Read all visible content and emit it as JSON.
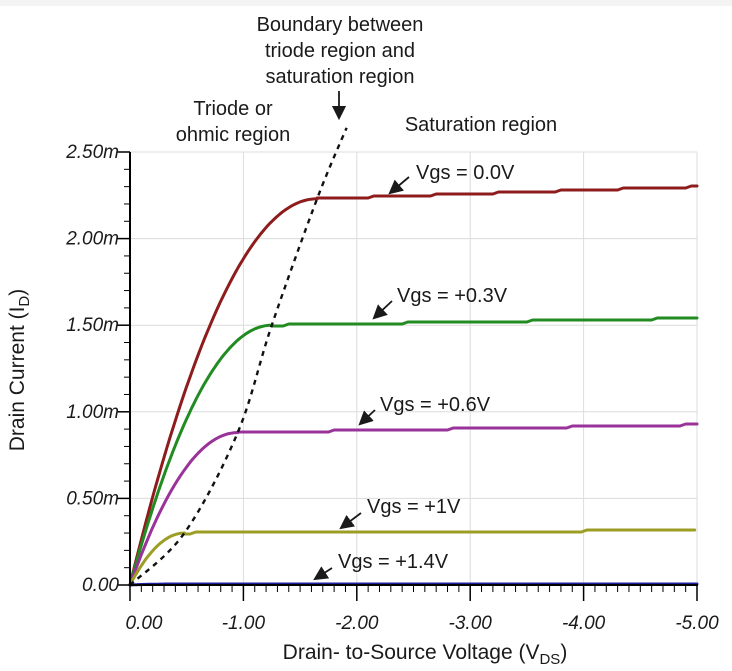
{
  "figure": {
    "background": "#ffffff",
    "top_strip_color": "#f4f4f5",
    "grid_color": "#dcdcdc",
    "axis_color": "#000000",
    "text_color": "#1a1a1a"
  },
  "annotations": {
    "boundary_line1": "Boundary between",
    "boundary_line2": "triode region and",
    "boundary_line3": "saturation region",
    "triode_line1": "Triode or",
    "triode_line2": "ohmic region",
    "saturation": "Saturation region"
  },
  "chart_data": {
    "type": "line",
    "title": "",
    "xlabel_pre": "Drain- to-Source Voltage (V",
    "xlabel_sub": "DS",
    "xlabel_post": ")",
    "ylabel_pre": "Drain Current (I",
    "ylabel_sub": "D",
    "ylabel_post": ")",
    "grid": true,
    "legend_position": "inline-labels",
    "x_axis": {
      "unit": "V",
      "min": 0,
      "max": -5,
      "tick_values": [
        0,
        -1,
        -2,
        -3,
        -4,
        -5
      ],
      "tick_labels": [
        "0.00",
        "-1.00",
        "-2.00",
        "-3.00",
        "-4.00",
        "-5.00"
      ],
      "minor_step": 0.1
    },
    "y_axis": {
      "unit": "mA",
      "min": 0,
      "max": 2.5,
      "tick_values": [
        0,
        0.5,
        1.0,
        1.5,
        2.0,
        2.5
      ],
      "tick_labels": [
        "0.00",
        "0.50m",
        "1.00m",
        "1.50m",
        "2.00m",
        "2.50m"
      ],
      "minor_step": 0.1
    },
    "series": [
      {
        "name": "Vgs = 0.0V",
        "vgs_v": 0.0,
        "color": "#8e1c1c",
        "pinch_off_vds_v": -1.65,
        "saturation_current_mA": 2.23,
        "current_at_vds_minus5_mA": 2.3,
        "points_vds_v_vs_id_mA": [
          [
            0,
            0
          ],
          [
            -0.25,
            0.62
          ],
          [
            -0.5,
            1.15
          ],
          [
            -0.75,
            1.57
          ],
          [
            -1.0,
            1.88
          ],
          [
            -1.25,
            2.1
          ],
          [
            -1.5,
            2.21
          ],
          [
            -1.65,
            2.23
          ],
          [
            -2.0,
            2.24
          ],
          [
            -3.0,
            2.26
          ],
          [
            -4.0,
            2.28
          ],
          [
            -5.0,
            2.3
          ]
        ]
      },
      {
        "name": "Vgs = +0.3V",
        "vgs_v": 0.3,
        "color": "#228b22",
        "pinch_off_vds_v": -1.25,
        "saturation_current_mA": 1.5,
        "current_at_vds_minus5_mA": 1.54,
        "points_vds_v_vs_id_mA": [
          [
            0,
            0
          ],
          [
            -0.25,
            0.54
          ],
          [
            -0.5,
            0.96
          ],
          [
            -0.75,
            1.26
          ],
          [
            -1.0,
            1.44
          ],
          [
            -1.25,
            1.5
          ],
          [
            -2.0,
            1.51
          ],
          [
            -3.0,
            1.52
          ],
          [
            -4.0,
            1.53
          ],
          [
            -5.0,
            1.54
          ]
        ]
      },
      {
        "name": "Vgs = +0.6V",
        "vgs_v": 0.6,
        "color": "#993399",
        "pinch_off_vds_v": -0.95,
        "saturation_current_mA": 0.88,
        "current_at_vds_minus5_mA": 0.925,
        "points_vds_v_vs_id_mA": [
          [
            0,
            0
          ],
          [
            -0.25,
            0.4
          ],
          [
            -0.5,
            0.68
          ],
          [
            -0.75,
            0.84
          ],
          [
            -0.95,
            0.88
          ],
          [
            -2.0,
            0.893
          ],
          [
            -3.0,
            0.904
          ],
          [
            -4.0,
            0.914
          ],
          [
            -5.0,
            0.925
          ]
        ]
      },
      {
        "name": "Vgs = +1V",
        "vgs_v": 1.0,
        "color": "#9c9e24",
        "pinch_off_vds_v": -0.48,
        "saturation_current_mA": 0.3,
        "current_at_vds_minus5_mA": 0.315,
        "points_vds_v_vs_id_mA": [
          [
            0,
            0
          ],
          [
            -0.25,
            0.23
          ],
          [
            -0.48,
            0.3
          ],
          [
            -1.0,
            0.302
          ],
          [
            -2.0,
            0.305
          ],
          [
            -3.0,
            0.308
          ],
          [
            -4.0,
            0.312
          ],
          [
            -5.0,
            0.315
          ]
        ]
      },
      {
        "name": "Vgs = +1.4V",
        "vgs_v": 1.4,
        "color": "#2020a0",
        "pinch_off_vds_v": -0.3,
        "saturation_current_mA": 0.005,
        "current_at_vds_minus5_mA": 0.008,
        "points_vds_v_vs_id_mA": [
          [
            0,
            0
          ],
          [
            -1.0,
            0.005
          ],
          [
            -2.0,
            0.006
          ],
          [
            -3.0,
            0.006
          ],
          [
            -4.0,
            0.007
          ],
          [
            -5.0,
            0.008
          ]
        ]
      }
    ],
    "boundary_curve": {
      "style": "dashed",
      "color": "#111111",
      "points_vds_v_vs_id_mA": [
        [
          0,
          0
        ],
        [
          -0.48,
          0.3
        ],
        [
          -0.95,
          0.88
        ],
        [
          -1.25,
          1.5
        ],
        [
          -1.65,
          2.23
        ],
        [
          -1.91,
          2.64
        ]
      ]
    }
  }
}
